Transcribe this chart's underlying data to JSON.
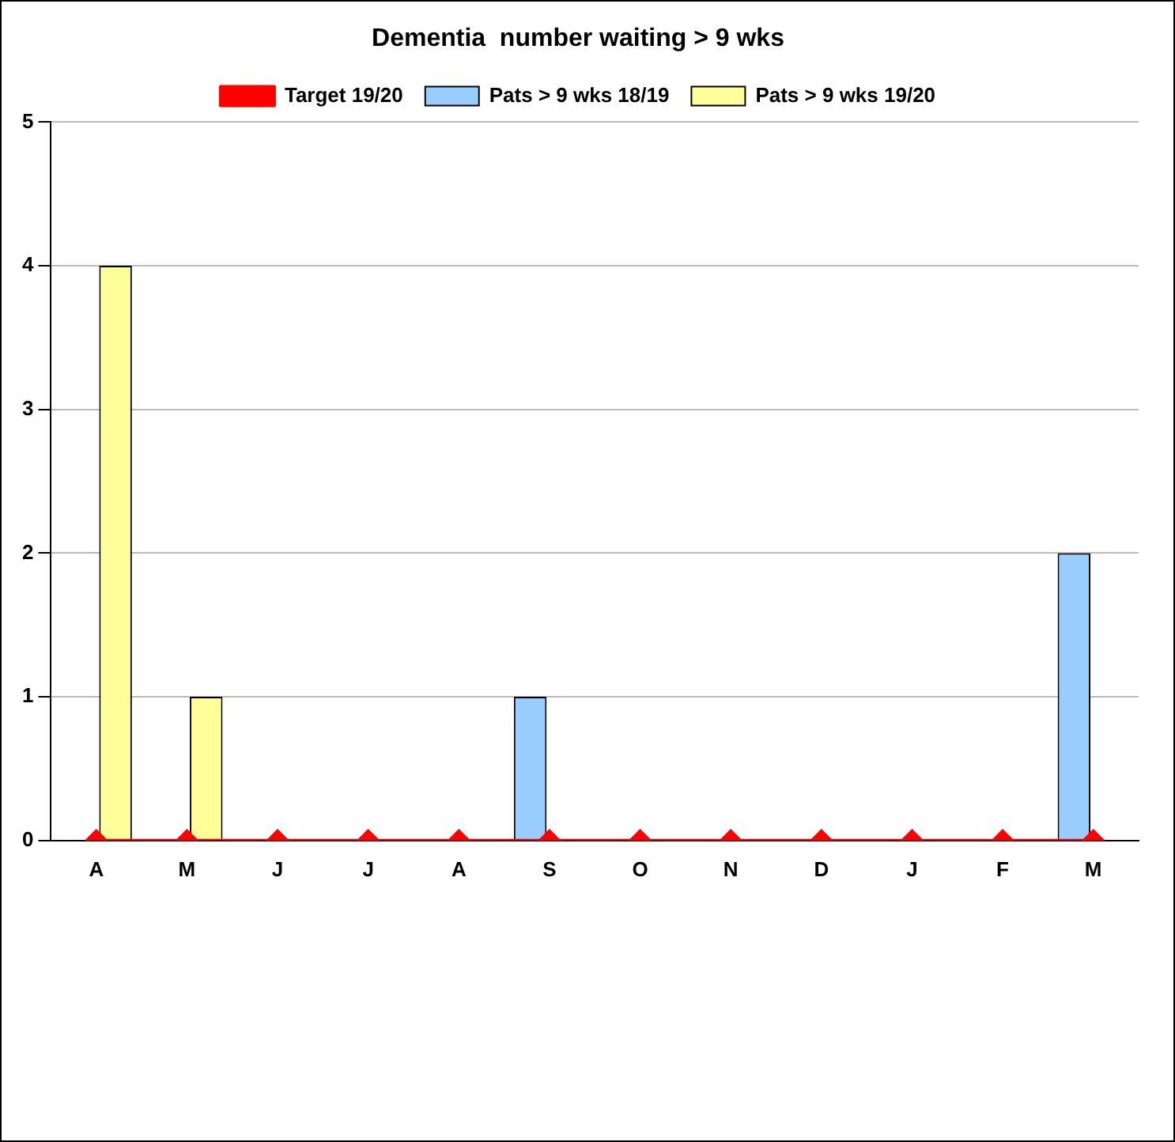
{
  "chart_data": {
    "type": "bar",
    "title": "Dementia  number waiting > 9 wks",
    "categories": [
      "A",
      "M",
      "J",
      "J",
      "A",
      "S",
      "O",
      "N",
      "D",
      "J",
      "F",
      "M"
    ],
    "series": [
      {
        "name": "Pats > 9 wks 18/19",
        "color": "#99ccff",
        "values": [
          0,
          0,
          0,
          0,
          0,
          1,
          0,
          0,
          0,
          0,
          0,
          2
        ]
      },
      {
        "name": "Pats > 9 wks 19/20",
        "color": "#ffff99",
        "values": [
          4,
          1,
          null,
          null,
          null,
          null,
          null,
          null,
          null,
          null,
          null,
          null
        ]
      },
      {
        "name": "Target 19/20",
        "type": "line",
        "color": "#ff0000",
        "marker": "diamond",
        "values": [
          0,
          0,
          0,
          0,
          0,
          0,
          0,
          0,
          0,
          0,
          0,
          0
        ]
      }
    ],
    "ylim": [
      0,
      5
    ],
    "yticks": [
      0,
      1,
      2,
      3,
      4,
      5
    ],
    "grid": "y",
    "legend": "top"
  }
}
